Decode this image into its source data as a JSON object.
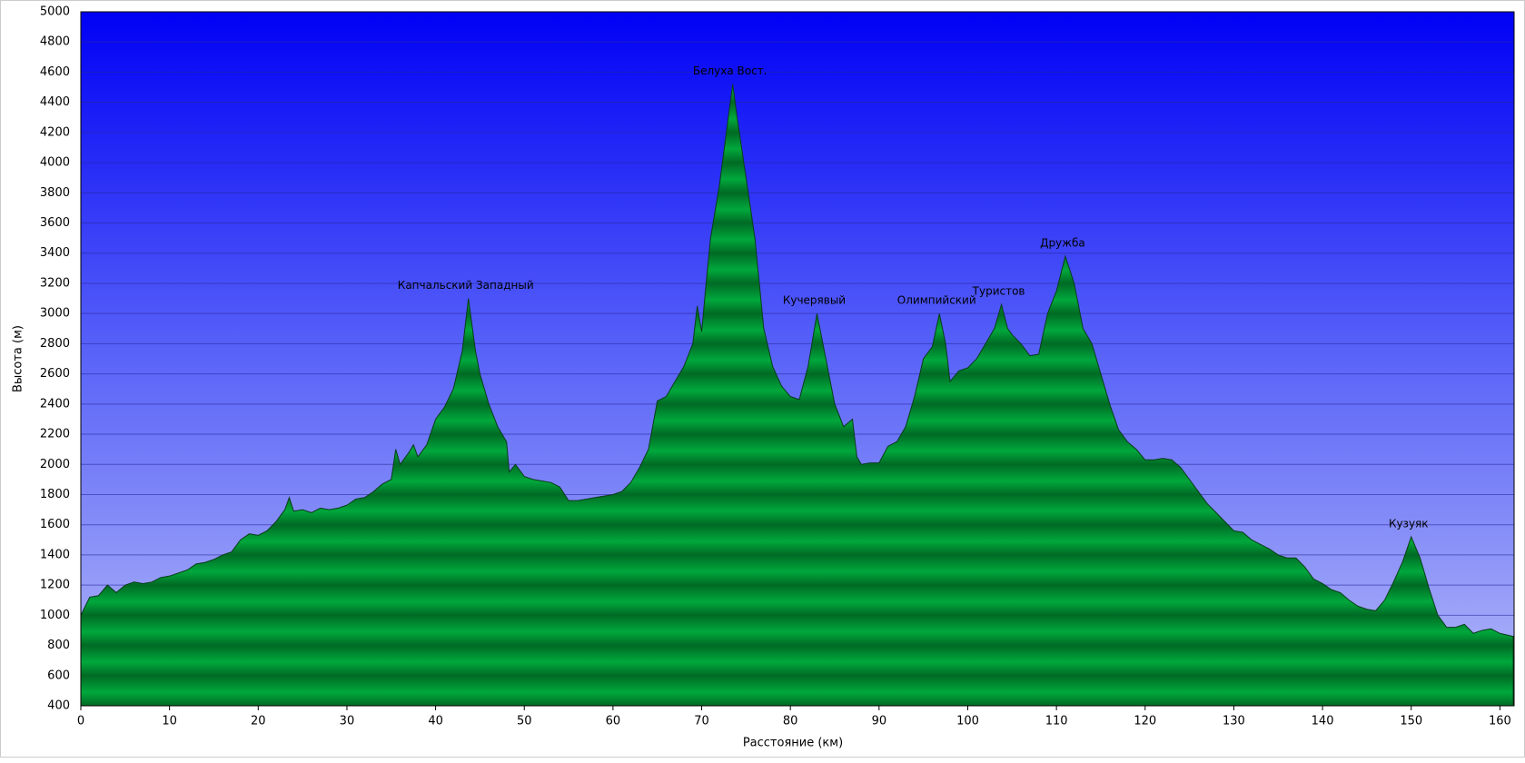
{
  "chart_data": {
    "type": "area",
    "xlabel": "Расстояние   (км)",
    "ylabel": "Высота (м)",
    "x": [
      0,
      1,
      2,
      3,
      4,
      5,
      6,
      7,
      8,
      9,
      10,
      11,
      12,
      13,
      14,
      15,
      16,
      17,
      18,
      19,
      20,
      21,
      22,
      23,
      23.5,
      24,
      25,
      26,
      27,
      28,
      29,
      30,
      31,
      32,
      33,
      34,
      35,
      35.5,
      36,
      37,
      37.5,
      38,
      39,
      40,
      41,
      42,
      43,
      43.7,
      44.5,
      45,
      46,
      47,
      48,
      48.3,
      49,
      50,
      51,
      52,
      53,
      54,
      55,
      56,
      57,
      58,
      59,
      60,
      61,
      62,
      63,
      64,
      65,
      66,
      67,
      68,
      69,
      69.5,
      70,
      70.5,
      71,
      72,
      73,
      73.5,
      74,
      75,
      76,
      77,
      78,
      79,
      80,
      81,
      82,
      83,
      84,
      85,
      86,
      87,
      87.5,
      88,
      89,
      90,
      91,
      92,
      93,
      94,
      95,
      96,
      96.8,
      97.5,
      98,
      99,
      100,
      101,
      102,
      103,
      103.8,
      104.5,
      105,
      106,
      107,
      108,
      109,
      110,
      111,
      112,
      113,
      114,
      115,
      116,
      117,
      118,
      119,
      120,
      121,
      122,
      123,
      124,
      125,
      126,
      127,
      128,
      129,
      130,
      131,
      132,
      133,
      134,
      135,
      136,
      137,
      138,
      139,
      140,
      141,
      142,
      143,
      144,
      145,
      146,
      147,
      148,
      149,
      150,
      151,
      152,
      153,
      154,
      155,
      156,
      157,
      158,
      159,
      160,
      161.5
    ],
    "series": [
      {
        "name": "Высота",
        "color": "#00a83c",
        "values": [
          1000,
          1120,
          1130,
          1200,
          1150,
          1200,
          1220,
          1210,
          1220,
          1250,
          1260,
          1280,
          1300,
          1340,
          1350,
          1370,
          1400,
          1420,
          1500,
          1540,
          1530,
          1560,
          1620,
          1700,
          1780,
          1690,
          1700,
          1680,
          1710,
          1700,
          1710,
          1730,
          1770,
          1780,
          1820,
          1870,
          1900,
          2100,
          2000,
          2080,
          2130,
          2050,
          2130,
          2300,
          2380,
          2500,
          2750,
          3100,
          2750,
          2600,
          2400,
          2250,
          2150,
          1950,
          2000,
          1920,
          1900,
          1890,
          1880,
          1850,
          1760,
          1760,
          1770,
          1780,
          1790,
          1800,
          1820,
          1880,
          1980,
          2100,
          2420,
          2450,
          2550,
          2650,
          2800,
          3050,
          2880,
          3200,
          3500,
          3850,
          4300,
          4520,
          4300,
          3900,
          3500,
          2900,
          2650,
          2520,
          2450,
          2430,
          2650,
          3000,
          2700,
          2400,
          2250,
          2300,
          2050,
          2000,
          2010,
          2010,
          2120,
          2150,
          2250,
          2450,
          2700,
          2780,
          3000,
          2800,
          2550,
          2620,
          2640,
          2700,
          2800,
          2900,
          3060,
          2900,
          2860,
          2800,
          2720,
          2730,
          3000,
          3150,
          3380,
          3200,
          2900,
          2800,
          2600,
          2400,
          2230,
          2150,
          2100,
          2030,
          2030,
          2040,
          2030,
          1980,
          1900,
          1820,
          1740,
          1680,
          1620,
          1560,
          1550,
          1500,
          1470,
          1440,
          1400,
          1380,
          1380,
          1320,
          1240,
          1210,
          1170,
          1150,
          1100,
          1060,
          1040,
          1030,
          1100,
          1220,
          1350,
          1520,
          1380,
          1180,
          1000,
          920,
          920,
          940,
          880,
          900,
          910,
          880,
          860
        ]
      }
    ],
    "annotations": [
      {
        "text": "Капчальский Западный",
        "x": 43.7,
        "y": 3100
      },
      {
        "text": "Белуха Вост.",
        "x": 73.5,
        "y": 4520
      },
      {
        "text": "Кучерявый",
        "x": 83,
        "y": 3000
      },
      {
        "text": "Олимпийский",
        "x": 96.8,
        "y": 3000
      },
      {
        "text": "Туристов",
        "x": 103.8,
        "y": 3060
      },
      {
        "text": "Дружба",
        "x": 111,
        "y": 3380
      },
      {
        "text": "Кузуяк",
        "x": 150,
        "y": 1520
      }
    ],
    "xlim": [
      0,
      161.6
    ],
    "ylim": [
      400,
      5000
    ],
    "xticks": [
      0,
      10,
      20,
      30,
      40,
      50,
      60,
      70,
      80,
      90,
      100,
      110,
      120,
      130,
      140,
      150,
      160
    ],
    "yticks": [
      400,
      600,
      800,
      1000,
      1200,
      1400,
      1600,
      1800,
      2000,
      2200,
      2400,
      2600,
      2800,
      3000,
      3200,
      3400,
      3600,
      3800,
      4000,
      4200,
      4400,
      4600,
      4800,
      5000
    ],
    "grid": true
  }
}
